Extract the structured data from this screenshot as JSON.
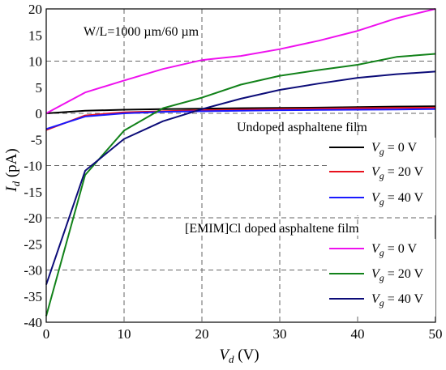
{
  "chart_data": {
    "type": "line",
    "xlabel": {
      "var": "V",
      "sub": "d",
      "unit": " (V)"
    },
    "ylabel": {
      "var": "I",
      "sub": "d",
      "unit": " (pA)"
    },
    "xlim": [
      0,
      50
    ],
    "ylim": [
      -40,
      20
    ],
    "xticks": [
      0,
      10,
      20,
      30,
      40,
      50
    ],
    "yticks": [
      20,
      15,
      10,
      5,
      0,
      -5,
      -10,
      -15,
      -20,
      -25,
      -30,
      -35,
      -40
    ],
    "grid": true,
    "annotation": "W/L=1000 µm/60 µm",
    "legend_groups": [
      {
        "title": "Undoped asphaltene film"
      },
      {
        "title": "[EMIM]Cl doped asphaltene film"
      }
    ],
    "series": [
      {
        "group": 0,
        "var": "V",
        "sub": "g",
        "label_rest": " = 0 V",
        "color": "#000000",
        "x": [
          0,
          5,
          10,
          15,
          20,
          25,
          30,
          35,
          40,
          45,
          50
        ],
        "y": [
          0,
          0.5,
          0.7,
          0.8,
          0.9,
          1.0,
          1.05,
          1.1,
          1.2,
          1.3,
          1.35
        ]
      },
      {
        "group": 0,
        "var": "V",
        "sub": "g",
        "label_rest": " = 20 V",
        "color": "#e8121e",
        "x": [
          0,
          5,
          10,
          15,
          20,
          25,
          30,
          35,
          40,
          45,
          50
        ],
        "y": [
          -3.2,
          -0.4,
          0.2,
          0.4,
          0.6,
          0.7,
          0.8,
          0.9,
          1.0,
          1.05,
          1.1
        ]
      },
      {
        "group": 0,
        "var": "V",
        "sub": "g",
        "label_rest": " = 40 V",
        "color": "#1a1aff",
        "x": [
          0,
          5,
          10,
          15,
          20,
          25,
          30,
          35,
          40,
          45,
          50
        ],
        "y": [
          -3.0,
          -0.6,
          0.0,
          0.3,
          0.4,
          0.5,
          0.6,
          0.65,
          0.7,
          0.75,
          0.8
        ]
      },
      {
        "group": 1,
        "var": "V",
        "sub": "g",
        "label_rest": " = 0 V",
        "color": "#ee11ee",
        "x": [
          0,
          5,
          10,
          15,
          20,
          25,
          30,
          35,
          40,
          45,
          50
        ],
        "y": [
          0,
          4.0,
          6.3,
          8.5,
          10.2,
          11.0,
          12.3,
          13.9,
          15.8,
          18.2,
          20.0
        ]
      },
      {
        "group": 1,
        "var": "V",
        "sub": "g",
        "label_rest": " = 20 V",
        "color": "#12821a",
        "x": [
          0,
          5,
          10,
          15,
          20,
          25,
          30,
          35,
          40,
          45,
          50
        ],
        "y": [
          -38.8,
          -11.8,
          -3.3,
          1.0,
          3.0,
          5.5,
          7.2,
          8.3,
          9.3,
          10.8,
          11.4
        ]
      },
      {
        "group": 1,
        "var": "V",
        "sub": "g",
        "label_rest": " = 40 V",
        "color": "#0c0c78",
        "x": [
          0,
          5,
          10,
          15,
          20,
          25,
          30,
          35,
          40,
          45,
          50
        ],
        "y": [
          -32.8,
          -11.0,
          -4.9,
          -1.5,
          0.8,
          2.8,
          4.5,
          5.7,
          6.8,
          7.5,
          8.0
        ]
      }
    ]
  }
}
